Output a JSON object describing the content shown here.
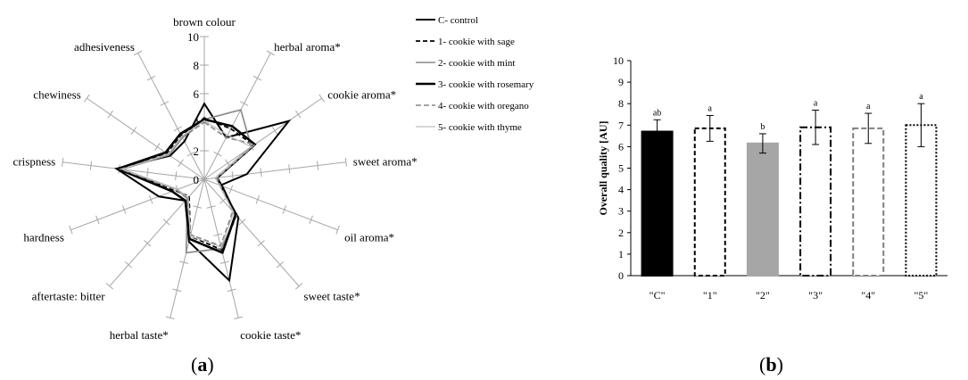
{
  "charts": [
    {
      "panel": "a",
      "chart_data": {
        "type": "radar",
        "rmax": 10,
        "ticks": [
          "0",
          "2",
          "4",
          "6",
          "8",
          "10"
        ],
        "axes": [
          "brown colour",
          "herbal aroma*",
          "cookie aroma*",
          "sweet aroma*",
          "oil aroma*",
          "sweet taste*",
          "cookie taste*",
          "herbal taste*",
          "aftertaste: bitter",
          "hardness",
          "crispness",
          "chewiness",
          "adhesiveness"
        ],
        "series": [
          {
            "name": "C- control",
            "color": "#000000",
            "dash": "",
            "width": 2,
            "values": [
              5.3,
              3.3,
              7.2,
              3.0,
              1.2,
              3.6,
              7.3,
              4.5,
              2.0,
              3.4,
              6.2,
              2.9,
              3.0
            ]
          },
          {
            "name": "1- cookie with sage",
            "color": "#000000",
            "dash": "5,3",
            "width": 1.8,
            "values": [
              4.3,
              4.0,
              4.2,
              0.8,
              1.2,
              3.4,
              5.1,
              4.1,
              1.6,
              2.2,
              6.0,
              3.2,
              3.5
            ]
          },
          {
            "name": "2- cookie with mint",
            "color": "#888888",
            "dash": "",
            "width": 1.6,
            "values": [
              4.2,
              5.5,
              4.0,
              0.8,
              1.4,
              3.4,
              5.0,
              5.3,
              1.8,
              2.0,
              5.8,
              3.0,
              3.3
            ]
          },
          {
            "name": "3- cookie with rosemary",
            "color": "#000000",
            "dash": "",
            "width": 2.6,
            "values": [
              4.2,
              4.2,
              4.3,
              0.9,
              1.3,
              3.3,
              5.3,
              4.3,
              2.0,
              2.4,
              6.1,
              3.3,
              3.6
            ]
          },
          {
            "name": "4- cookie with oregano",
            "color": "#888888",
            "dash": "6,3",
            "width": 1.6,
            "values": [
              4.0,
              3.3,
              4.3,
              0.9,
              1.2,
              3.0,
              4.8,
              4.0,
              1.8,
              2.1,
              5.9,
              3.0,
              3.3
            ]
          },
          {
            "name": "5- cookie with thyme",
            "color": "#bdbdbd",
            "dash": "",
            "width": 1.3,
            "values": [
              4.1,
              3.5,
              4.0,
              0.8,
              1.1,
              3.1,
              4.9,
              4.1,
              1.7,
              2.0,
              5.8,
              3.1,
              3.4
            ]
          }
        ],
        "legend": "right"
      }
    },
    {
      "panel": "b",
      "chart_data": {
        "type": "bar",
        "categories": [
          "\"C\"",
          "\"1\"",
          "\"2\"",
          "\"3\"",
          "\"4\"",
          "\"5\""
        ],
        "values": [
          6.7,
          6.85,
          6.15,
          6.9,
          6.85,
          7.0
        ],
        "errors": [
          0.55,
          0.6,
          0.45,
          0.8,
          0.7,
          1.0
        ],
        "significance": [
          "ab",
          "a",
          "b",
          "a",
          "a",
          "a"
        ],
        "styles": [
          {
            "fill": "#000000",
            "stroke": "#000000",
            "dash": ""
          },
          {
            "fill": "#ffffff",
            "stroke": "#000000",
            "dash": "5,3"
          },
          {
            "fill": "#a6a6a6",
            "stroke": "#a6a6a6",
            "dash": ""
          },
          {
            "fill": "#ffffff",
            "stroke": "#000000",
            "dash": "8,3,2,3"
          },
          {
            "fill": "#ffffff",
            "stroke": "#7f7f7f",
            "dash": "6,3"
          },
          {
            "fill": "#ffffff",
            "stroke": "#000000",
            "dash": "2,2"
          }
        ],
        "ylabel": "Overall quality [AU]",
        "ylim": [
          0,
          10
        ],
        "yticks": [
          "0",
          "1",
          "2",
          "3",
          "4",
          "5",
          "6",
          "7",
          "8",
          "9",
          "10"
        ]
      }
    }
  ]
}
